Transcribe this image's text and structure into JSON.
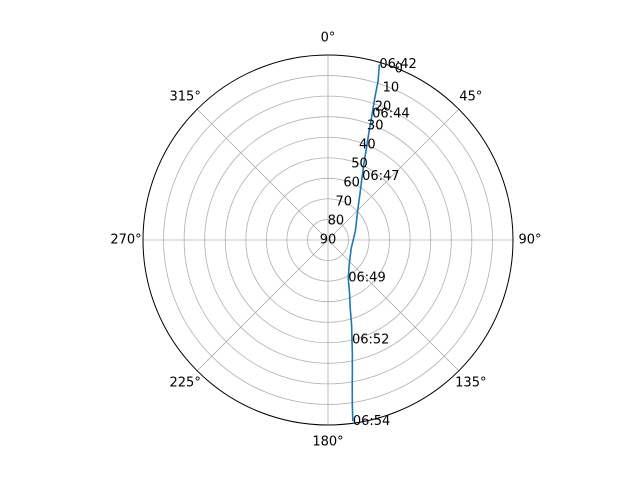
{
  "chart_data": {
    "type": "line",
    "projection": "polar",
    "theta_zero": "N",
    "theta_direction": "clockwise",
    "r_axis": "elevation_inverted",
    "r_range": [
      0,
      90
    ],
    "grid": true,
    "angle_ticks": [
      {
        "deg": 0,
        "label": "0°"
      },
      {
        "deg": 45,
        "label": "45°"
      },
      {
        "deg": 90,
        "label": "90°"
      },
      {
        "deg": 135,
        "label": "135°"
      },
      {
        "deg": 180,
        "label": "180°"
      },
      {
        "deg": 225,
        "label": "225°"
      },
      {
        "deg": 270,
        "label": "270°"
      },
      {
        "deg": 315,
        "label": "315°"
      }
    ],
    "radial_ticks": [
      0,
      10,
      20,
      30,
      40,
      50,
      60,
      70,
      80,
      90
    ],
    "series": [
      {
        "color": "#1f77b4",
        "points": [
          {
            "az": 16.3,
            "el": 1
          },
          {
            "az": 17.5,
            "el": 9
          },
          {
            "az": 18.2,
            "el": 17
          },
          {
            "az": 19.3,
            "el": 25
          },
          {
            "az": 20.6,
            "el": 33
          },
          {
            "az": 22.3,
            "el": 40
          },
          {
            "az": 24.8,
            "el": 48
          },
          {
            "az": 28.3,
            "el": 55
          },
          {
            "az": 34,
            "el": 62
          },
          {
            "az": 46,
            "el": 70
          },
          {
            "az": 72,
            "el": 76
          },
          {
            "az": 110,
            "el": 78
          },
          {
            "az": 140,
            "el": 74
          },
          {
            "az": 152,
            "el": 69
          },
          {
            "az": 158,
            "el": 62
          },
          {
            "az": 162,
            "el": 55
          },
          {
            "az": 164.5,
            "el": 47
          },
          {
            "az": 166.5,
            "el": 40
          },
          {
            "az": 168,
            "el": 33
          },
          {
            "az": 169.5,
            "el": 25
          },
          {
            "az": 170.7,
            "el": 17
          },
          {
            "az": 171.6,
            "el": 9
          },
          {
            "az": 172.2,
            "el": 1
          }
        ]
      }
    ],
    "annotations": [
      {
        "text": "06:42",
        "az": 16.3,
        "el": 1
      },
      {
        "text": "06:44",
        "az": 19.3,
        "el": 25
      },
      {
        "text": "06:47",
        "az": 28.3,
        "el": 55
      },
      {
        "text": "06:49",
        "az": 152,
        "el": 69
      },
      {
        "text": "06:52",
        "az": 166.5,
        "el": 40
      },
      {
        "text": "06:54",
        "az": 172.2,
        "el": 1
      }
    ]
  }
}
